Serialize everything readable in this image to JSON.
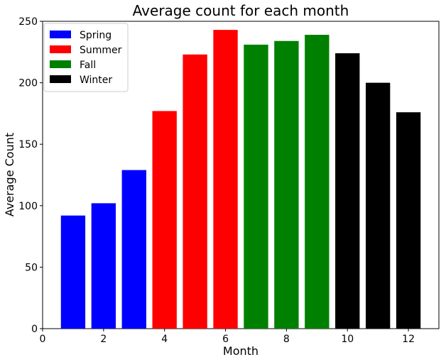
{
  "chart_data": {
    "type": "bar",
    "title": "Average count for each month",
    "xlabel": "Month",
    "ylabel": "Average Count",
    "xlim": [
      0,
      13
    ],
    "ylim": [
      0,
      250
    ],
    "xticks": [
      "0",
      "2",
      "4",
      "6",
      "8",
      "10",
      "12"
    ],
    "yticks": [
      "0",
      "50",
      "100",
      "150",
      "200",
      "250"
    ],
    "grid": false,
    "legend_position": "top-left",
    "series": [
      {
        "name": "Spring",
        "color": "#0000ff",
        "x": [
          1,
          2,
          3
        ],
        "values": [
          92,
          102,
          129
        ]
      },
      {
        "name": "Summer",
        "color": "#ff0000",
        "x": [
          4,
          5,
          6
        ],
        "values": [
          177,
          223,
          243
        ]
      },
      {
        "name": "Fall",
        "color": "#008000",
        "x": [
          7,
          8,
          9
        ],
        "values": [
          231,
          234,
          239
        ]
      },
      {
        "name": "Winter",
        "color": "#000000",
        "x": [
          10,
          11,
          12
        ],
        "values": [
          224,
          200,
          176
        ]
      }
    ]
  }
}
